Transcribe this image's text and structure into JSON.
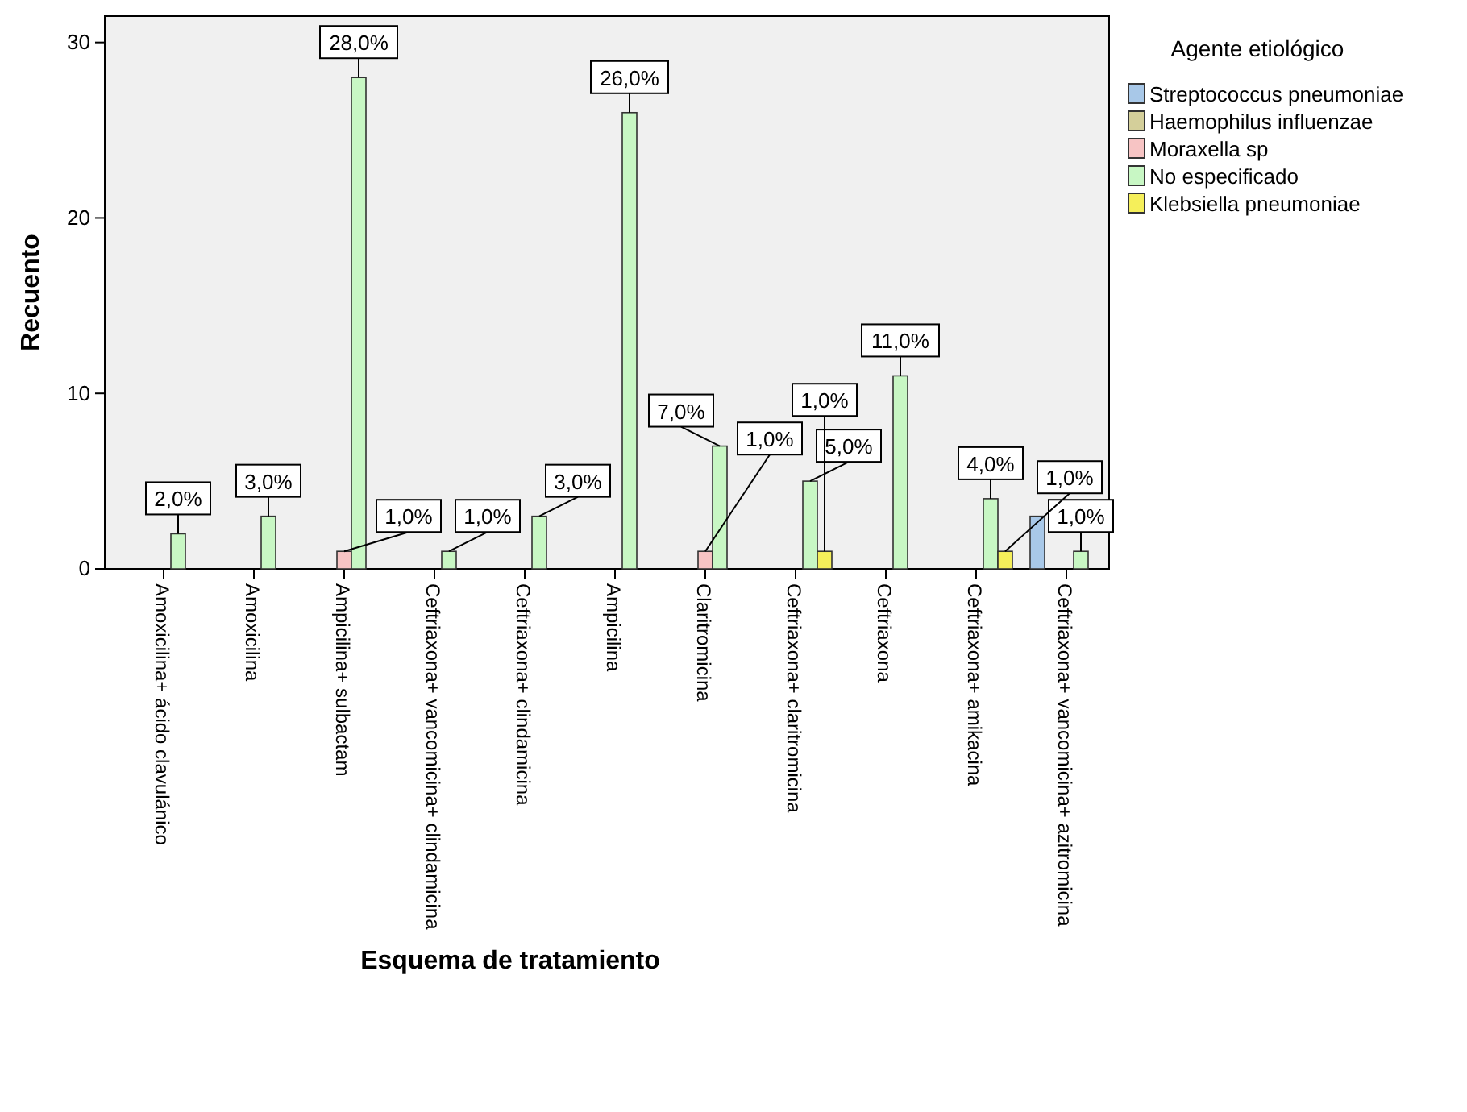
{
  "chart_data": {
    "type": "bar",
    "xlabel": "Esquema de tratamiento",
    "ylabel": "Recuento",
    "legend_title": "Agente etiológico",
    "legend": "top right",
    "grid": false,
    "categories": [
      "Amoxicilina+ ácido clavulánico",
      "Amoxicilina",
      "Ampicilina+ sulbactam",
      "Ceftriaxona+ vancomicina+ clindamicina",
      "Ceftriaxona+ clindamicina",
      "Ampicilina",
      "Claritromicina",
      "Ceftriaxona+ claritromicina",
      "Ceftriaxona",
      "Ceftriaxona+ amikacina",
      "Ceftriaxona+ vancomicina+ azitromicina"
    ],
    "ylim": [
      0,
      31.5
    ],
    "yticks": [
      0,
      10,
      20,
      30
    ],
    "series": [
      {
        "name": "Streptococcus pneumoniae",
        "color": "#a8c8e8",
        "values": [
          null,
          null,
          null,
          null,
          null,
          null,
          null,
          null,
          null,
          null,
          3
        ],
        "value_labels": [
          null,
          null,
          null,
          null,
          null,
          null,
          null,
          null,
          null,
          null,
          null
        ]
      },
      {
        "name": "Haemophilus influenzae",
        "color": "#d4cf9a",
        "values": [
          null,
          null,
          null,
          null,
          null,
          null,
          null,
          null,
          null,
          null,
          null
        ]
      },
      {
        "name": "Moraxella sp",
        "color": "#f7c4c4",
        "values": [
          null,
          null,
          1,
          null,
          null,
          null,
          1,
          null,
          null,
          null,
          null
        ],
        "value_labels": [
          null,
          null,
          "1,0%",
          null,
          null,
          null,
          "1,0%",
          null,
          null,
          null,
          null
        ]
      },
      {
        "name": "No especificado",
        "color": "#c8f7c4",
        "values": [
          2,
          3,
          28,
          1,
          3,
          26,
          7,
          5,
          11,
          4,
          1
        ],
        "value_labels": [
          "2,0%",
          "3,0%",
          "28,0%",
          "1,0%",
          "3,0%",
          "26,0%",
          "7,0%",
          "5,0%",
          "11,0%",
          "4,0%",
          "1,0%"
        ]
      },
      {
        "name": "Klebsiella pneumoniae",
        "color": "#f5ef5a",
        "values": [
          null,
          null,
          null,
          null,
          null,
          null,
          null,
          1,
          null,
          1,
          null
        ],
        "value_labels": [
          null,
          null,
          null,
          null,
          null,
          null,
          null,
          "1,0%",
          null,
          "1,0%",
          null
        ]
      }
    ]
  }
}
